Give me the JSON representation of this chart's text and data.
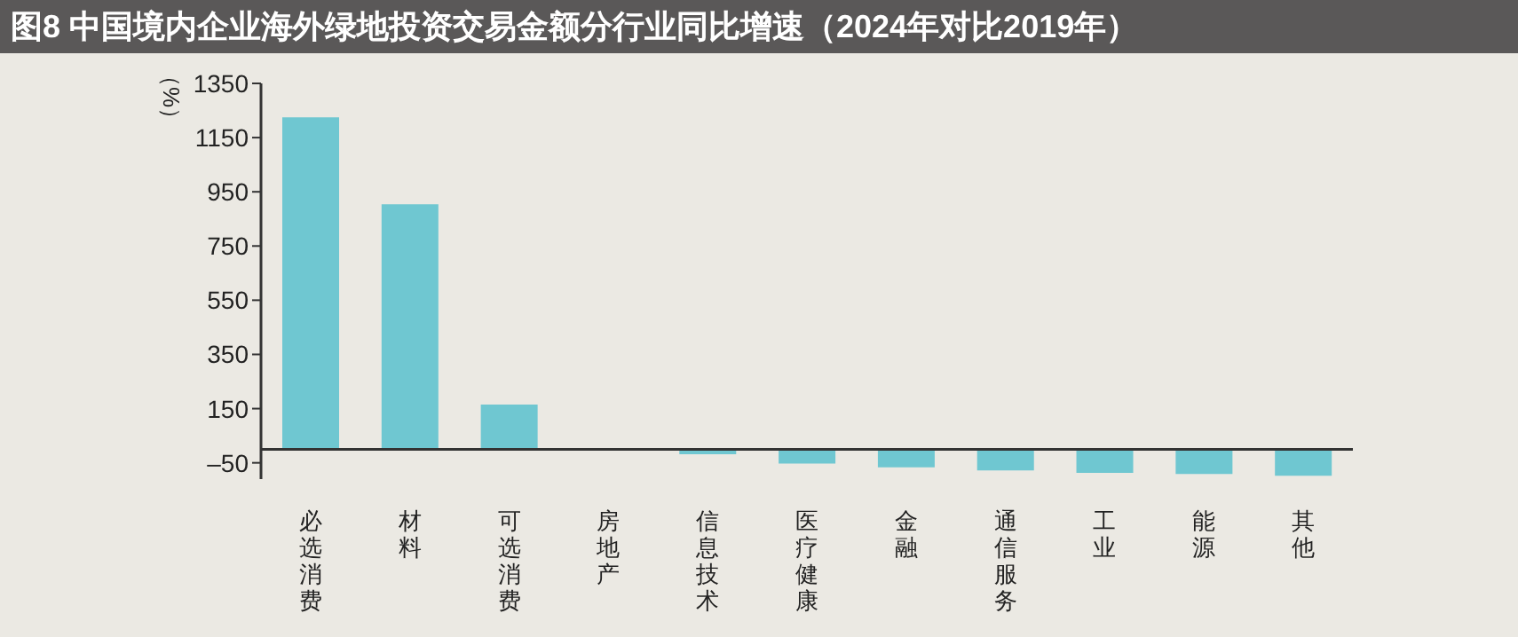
{
  "chart_data": {
    "type": "bar",
    "title": "图8 中国境内企业海外绿地投资交易金额分行业同比增速（2024年对比2019年）",
    "ylabel": "（%）",
    "categories": [
      "必选消费",
      "材料",
      "可选消费",
      "房地产",
      "信息技术",
      "医疗健康",
      "金融",
      "通信服务",
      "工业",
      "能源",
      "其他"
    ],
    "values": [
      1225,
      904,
      165,
      0,
      -18,
      -53,
      -67,
      -78,
      -87,
      -91,
      -98
    ],
    "color": "#6fc7d1",
    "ylim": [
      -110,
      1350
    ],
    "yticks": [
      {
        "value": -50,
        "label": "–50"
      },
      150,
      350,
      550,
      750,
      950,
      1150,
      1350
    ],
    "grid": false,
    "legend": false
  }
}
